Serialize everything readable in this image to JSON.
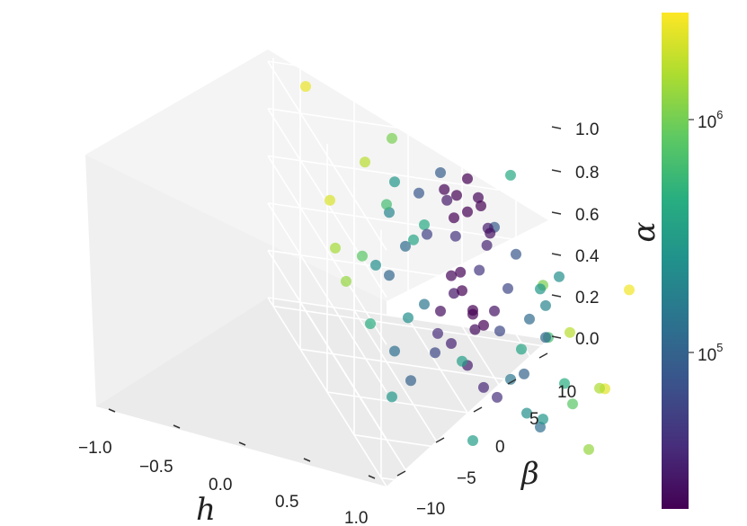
{
  "chart_data": {
    "type": "scatter",
    "subtype": "3d",
    "xlabel": "h",
    "ylabel": "β",
    "zlabel": "α",
    "xticks": [
      "−1.0",
      "−0.5",
      "0.0",
      "0.5",
      "1.0"
    ],
    "yticks": [
      "−10",
      "−5",
      "0",
      "5",
      "10"
    ],
    "zticks": [
      "0.0",
      "0.2",
      "0.4",
      "0.6",
      "0.8",
      "1.0"
    ],
    "xlim": [
      -1.1,
      1.1
    ],
    "ylim": [
      -13,
      13
    ],
    "zlim": [
      0,
      1.05
    ],
    "colorbar": {
      "colormap": "viridis",
      "scale": "log",
      "range": [
        20000,
        3500000
      ],
      "ticks": [
        {
          "base": "10",
          "exp": "5"
        },
        {
          "base": "10",
          "exp": "6"
        }
      ]
    },
    "marker_alpha": 0.7,
    "grid": true,
    "points": [
      [
        0.0,
        0.0,
        0.85,
        15000
      ],
      [
        0.05,
        1,
        0.9,
        18000
      ],
      [
        -0.05,
        -1,
        0.8,
        20000
      ],
      [
        0.1,
        0.5,
        0.95,
        22000
      ],
      [
        -0.1,
        -0.5,
        0.88,
        19000
      ],
      [
        0.02,
        2,
        0.78,
        25000
      ],
      [
        -0.03,
        -2,
        0.92,
        21000
      ],
      [
        0.08,
        1.5,
        0.82,
        30000
      ],
      [
        -0.08,
        -1.5,
        0.86,
        28000
      ],
      [
        0.0,
        0.0,
        0.99,
        17000
      ],
      [
        0.04,
        0.3,
        0.45,
        16000
      ],
      [
        -0.04,
        -0.3,
        0.5,
        18000
      ],
      [
        0.06,
        1.2,
        0.4,
        20000
      ],
      [
        -0.06,
        -1.2,
        0.55,
        22000
      ],
      [
        0.0,
        0.5,
        0.42,
        19000
      ],
      [
        0.1,
        2,
        0.48,
        26000
      ],
      [
        -0.1,
        -2,
        0.38,
        24000
      ],
      [
        0.03,
        -0.8,
        0.6,
        21000
      ],
      [
        -0.02,
        0.8,
        0.35,
        23000
      ],
      [
        0.07,
        -1.6,
        0.52,
        27000
      ],
      [
        0.0,
        0.0,
        0.2,
        30000
      ],
      [
        0.1,
        1,
        0.15,
        35000
      ],
      [
        -0.1,
        -1,
        0.25,
        32000
      ],
      [
        0.05,
        2.5,
        0.1,
        40000
      ],
      [
        -0.05,
        -2.5,
        0.3,
        38000
      ],
      [
        0.12,
        0.5,
        0.65,
        45000
      ],
      [
        -0.12,
        -0.5,
        0.7,
        42000
      ],
      [
        0.15,
        3,
        0.6,
        60000
      ],
      [
        -0.15,
        -3,
        0.68,
        55000
      ],
      [
        0.0,
        1.8,
        0.72,
        33000
      ],
      [
        -0.3,
        -3,
        0.8,
        80000
      ],
      [
        -0.35,
        -4,
        0.55,
        120000
      ],
      [
        -0.4,
        -2,
        0.3,
        150000
      ],
      [
        -0.45,
        -5,
        0.65,
        200000
      ],
      [
        -0.5,
        -3,
        0.2,
        250000
      ],
      [
        -0.3,
        -1,
        0.9,
        90000
      ],
      [
        -0.25,
        -6,
        0.45,
        110000
      ],
      [
        -0.55,
        -4,
        0.75,
        300000
      ],
      [
        -0.6,
        -2,
        0.5,
        400000
      ],
      [
        -0.35,
        -5,
        0.1,
        130000
      ],
      [
        0.3,
        3,
        0.8,
        80000
      ],
      [
        0.35,
        4,
        0.55,
        120000
      ],
      [
        0.4,
        2,
        0.3,
        150000
      ],
      [
        0.45,
        5,
        0.65,
        200000
      ],
      [
        0.5,
        3,
        0.2,
        250000
      ],
      [
        0.3,
        1,
        0.9,
        90000
      ],
      [
        0.25,
        6,
        0.45,
        110000
      ],
      [
        0.55,
        4,
        0.75,
        300000
      ],
      [
        0.6,
        2,
        0.5,
        400000
      ],
      [
        0.35,
        5,
        0.1,
        130000
      ],
      [
        -0.7,
        -4,
        0.6,
        700000
      ],
      [
        -0.75,
        -6,
        0.35,
        900000
      ],
      [
        -0.8,
        -3,
        0.85,
        1200000
      ],
      [
        -0.85,
        -7,
        0.2,
        1500000
      ],
      [
        -0.9,
        -5,
        0.7,
        2000000
      ],
      [
        0.7,
        4,
        0.6,
        700000
      ],
      [
        0.75,
        6,
        0.35,
        900000
      ],
      [
        0.8,
        3,
        0.85,
        1200000
      ],
      [
        0.85,
        7,
        0.2,
        1500000
      ],
      [
        0.9,
        5,
        0.7,
        2000000
      ],
      [
        0.95,
        8,
        0.5,
        2800000
      ],
      [
        -0.95,
        -8,
        0.5,
        2600000
      ],
      [
        1.0,
        10,
        0.95,
        3200000
      ],
      [
        -1.0,
        -10,
        0.95,
        3000000
      ],
      [
        0.65,
        9,
        0.4,
        1800000
      ],
      [
        -0.65,
        -9,
        0.4,
        1700000
      ],
      [
        0.2,
        -4,
        0.3,
        60000
      ],
      [
        -0.2,
        4,
        0.3,
        60000
      ],
      [
        0.15,
        -6,
        0.15,
        100000
      ],
      [
        -0.15,
        6,
        0.15,
        100000
      ],
      [
        0.5,
        -2,
        0.05,
        350000
      ],
      [
        -0.5,
        2,
        0.05,
        350000
      ],
      [
        0.2,
        8,
        0.25,
        500000
      ],
      [
        -0.2,
        -8,
        0.25,
        500000
      ],
      [
        0.1,
        -9,
        0.6,
        250000
      ],
      [
        -0.1,
        9,
        0.6,
        250000
      ],
      [
        0.4,
        -6,
        0.9,
        450000
      ],
      [
        -0.4,
        6,
        0.9,
        450000
      ],
      [
        0.0,
        -7,
        0.02,
        300000
      ],
      [
        0.0,
        7,
        0.02,
        300000
      ]
    ]
  }
}
